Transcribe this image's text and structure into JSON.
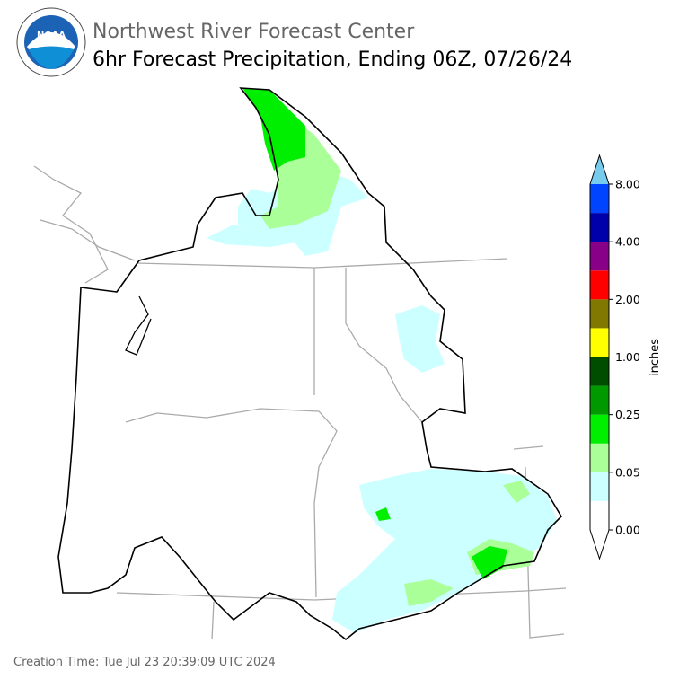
{
  "header": {
    "agency": "Northwest River Forecast Center",
    "title": "6hr Forecast Precipitation, Ending 06Z, 07/26/24"
  },
  "legend": {
    "label": "inches",
    "ticks": [
      "0.00",
      "0.05",
      "0.25",
      "1.00",
      "2.00",
      "4.00",
      "8.00"
    ],
    "colors": [
      "#ffffff",
      "#ccffff",
      "#aaff99",
      "#00ee00",
      "#009900",
      "#004d00",
      "#ffff00",
      "#807800",
      "#ff0000",
      "#880088",
      "#0000aa",
      "#0044ff"
    ],
    "under_color": "#ffffff",
    "over_color": "#77ccee"
  },
  "footer": {
    "creation": "Creation Time: Tue Jul 23 20:39:09 UTC 2024"
  }
}
